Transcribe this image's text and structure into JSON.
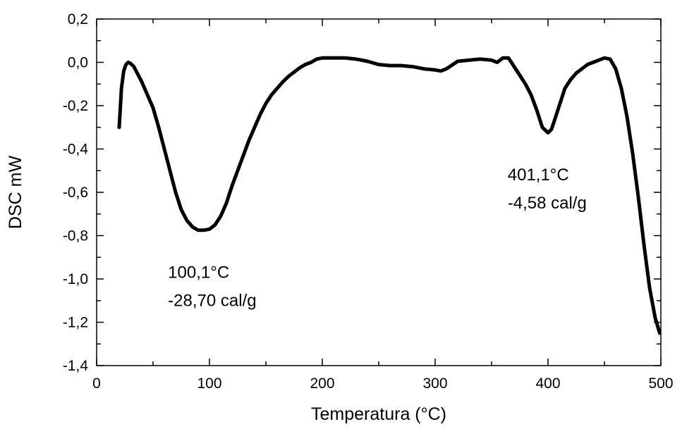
{
  "chart_data": {
    "type": "line",
    "title": "",
    "xlabel": "Temperatura (°C)",
    "ylabel": "DSC mW",
    "xlim": [
      0,
      500
    ],
    "ylim": [
      -1.4,
      0.2
    ],
    "x_ticks": [
      0,
      100,
      200,
      300,
      400,
      500
    ],
    "x_tick_labels": [
      "0",
      "100",
      "200",
      "300",
      "400",
      "500"
    ],
    "x_minor_step": 50,
    "y_ticks": [
      -1.4,
      -1.2,
      -1.0,
      -0.8,
      -0.6,
      -0.4,
      -0.2,
      0.0,
      0.2
    ],
    "y_tick_labels": [
      "-1,4",
      "-1,2",
      "-1,0",
      "-0,8",
      "-0,6",
      "-0,4",
      "-0,2",
      "0,0",
      "0,2"
    ],
    "y_minor_step": 0.1,
    "grid": false,
    "legend": "none",
    "line_color": "#000000",
    "series": [
      {
        "x": [
          20,
          22,
          24,
          26,
          28,
          30,
          33,
          36,
          40,
          45,
          50,
          55,
          60,
          65,
          70,
          75,
          80,
          85,
          90,
          95,
          100,
          105,
          110,
          115,
          120,
          125,
          130,
          135,
          140,
          145,
          150,
          155,
          160,
          165,
          170,
          175,
          180,
          185,
          190,
          195,
          200,
          210,
          220,
          230,
          240,
          250,
          260,
          270,
          280,
          290,
          300,
          305,
          310,
          320,
          330,
          340,
          350,
          355,
          360,
          365,
          370,
          375,
          380,
          385,
          390,
          395,
          400,
          403,
          405,
          410,
          415,
          420,
          425,
          430,
          435,
          440,
          445,
          450,
          455,
          460,
          465,
          470,
          475,
          480,
          485,
          490,
          495,
          499
        ],
        "y": [
          -0.3,
          -0.12,
          -0.04,
          -0.01,
          0.0,
          -0.005,
          -0.02,
          -0.05,
          -0.09,
          -0.15,
          -0.21,
          -0.3,
          -0.4,
          -0.5,
          -0.6,
          -0.68,
          -0.73,
          -0.76,
          -0.775,
          -0.775,
          -0.77,
          -0.75,
          -0.71,
          -0.65,
          -0.57,
          -0.5,
          -0.43,
          -0.36,
          -0.3,
          -0.24,
          -0.19,
          -0.15,
          -0.12,
          -0.09,
          -0.065,
          -0.045,
          -0.025,
          -0.01,
          0.0,
          0.015,
          0.02,
          0.02,
          0.02,
          0.015,
          0.005,
          -0.01,
          -0.015,
          -0.015,
          -0.02,
          -0.03,
          -0.035,
          -0.04,
          -0.03,
          0.005,
          0.01,
          0.015,
          0.01,
          0.0,
          0.02,
          0.02,
          -0.02,
          -0.06,
          -0.1,
          -0.15,
          -0.22,
          -0.3,
          -0.325,
          -0.31,
          -0.28,
          -0.2,
          -0.12,
          -0.08,
          -0.05,
          -0.03,
          -0.01,
          0.0,
          0.01,
          0.02,
          0.015,
          -0.03,
          -0.12,
          -0.25,
          -0.42,
          -0.62,
          -0.84,
          -1.04,
          -1.18,
          -1.25
        ]
      }
    ],
    "annotations": [
      {
        "x": 100.1,
        "y": -0.8,
        "lines": [
          "100,1°C",
          "-28,70 cal/g"
        ]
      },
      {
        "x": 401.1,
        "y": -0.35,
        "lines": [
          "401,1°C",
          "-4,58 cal/g"
        ]
      }
    ]
  }
}
